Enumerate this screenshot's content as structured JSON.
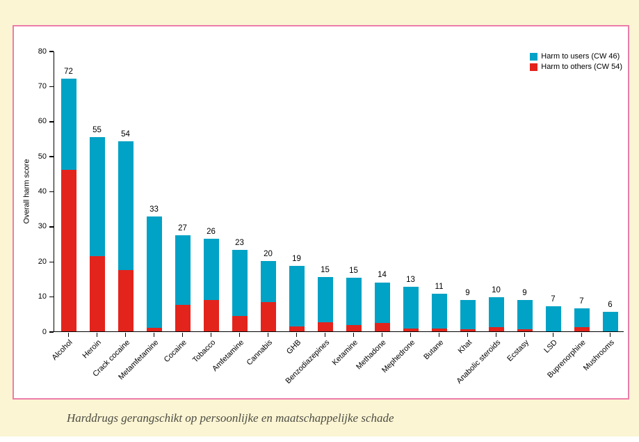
{
  "page": {
    "caption": "Harddrugs gerangschikt op persoonlijke en maatschappelijke schade",
    "background_color": "#fbf5d3",
    "panel_border_color": "#ec7ca9"
  },
  "chart_data": {
    "type": "bar",
    "stacked": true,
    "title": "",
    "xlabel": "",
    "ylabel": "Overall harm score",
    "ylim": [
      0,
      80
    ],
    "yticks": [
      0,
      10,
      20,
      30,
      40,
      50,
      60,
      70,
      80
    ],
    "grid": false,
    "legend_position": "top-right",
    "categories": [
      "Alcohol",
      "Heroin",
      "Crack cocaine",
      "Metamfetamine",
      "Cocaine",
      "Tobacco",
      "Amfetamine",
      "Cannabis",
      "GHB",
      "Benzodiazepines",
      "Ketamine",
      "Methadone",
      "Mephedrone",
      "Butane",
      "Khat",
      "Anabolic steroids",
      "Ecstasy",
      "LSD",
      "Buprenorphine",
      "Mushrooms"
    ],
    "bar_labels": [
      "72",
      "55",
      "54",
      "33",
      "27",
      "26",
      "23",
      "20",
      "19",
      "15",
      "15",
      "14",
      "13",
      "11",
      "9",
      "10",
      "9",
      "7",
      "7",
      "6"
    ],
    "series": [
      {
        "name": "Harm to others (CW 54)",
        "color": "#e3241c",
        "values": [
          46,
          21.5,
          17.5,
          1,
          7.5,
          9,
          4.3,
          8.3,
          1.3,
          2.6,
          1.8,
          2.4,
          0.8,
          0.7,
          0.6,
          1.2,
          0.6,
          0,
          1.1,
          0
        ]
      },
      {
        "name": "Harm to users (CW 46)",
        "color": "#00a2c5",
        "values": [
          26,
          33.8,
          36.7,
          31.8,
          19.8,
          17.4,
          18.9,
          11.8,
          17.4,
          12.8,
          13.4,
          11.6,
          12,
          10,
          8.3,
          8.5,
          8.4,
          7.1,
          5.5,
          5.6
        ]
      }
    ],
    "legend": [
      {
        "label": "Harm to users (CW 46)",
        "color": "#00a2c5"
      },
      {
        "label": "Harm to others (CW 54)",
        "color": "#e3241c"
      }
    ]
  }
}
